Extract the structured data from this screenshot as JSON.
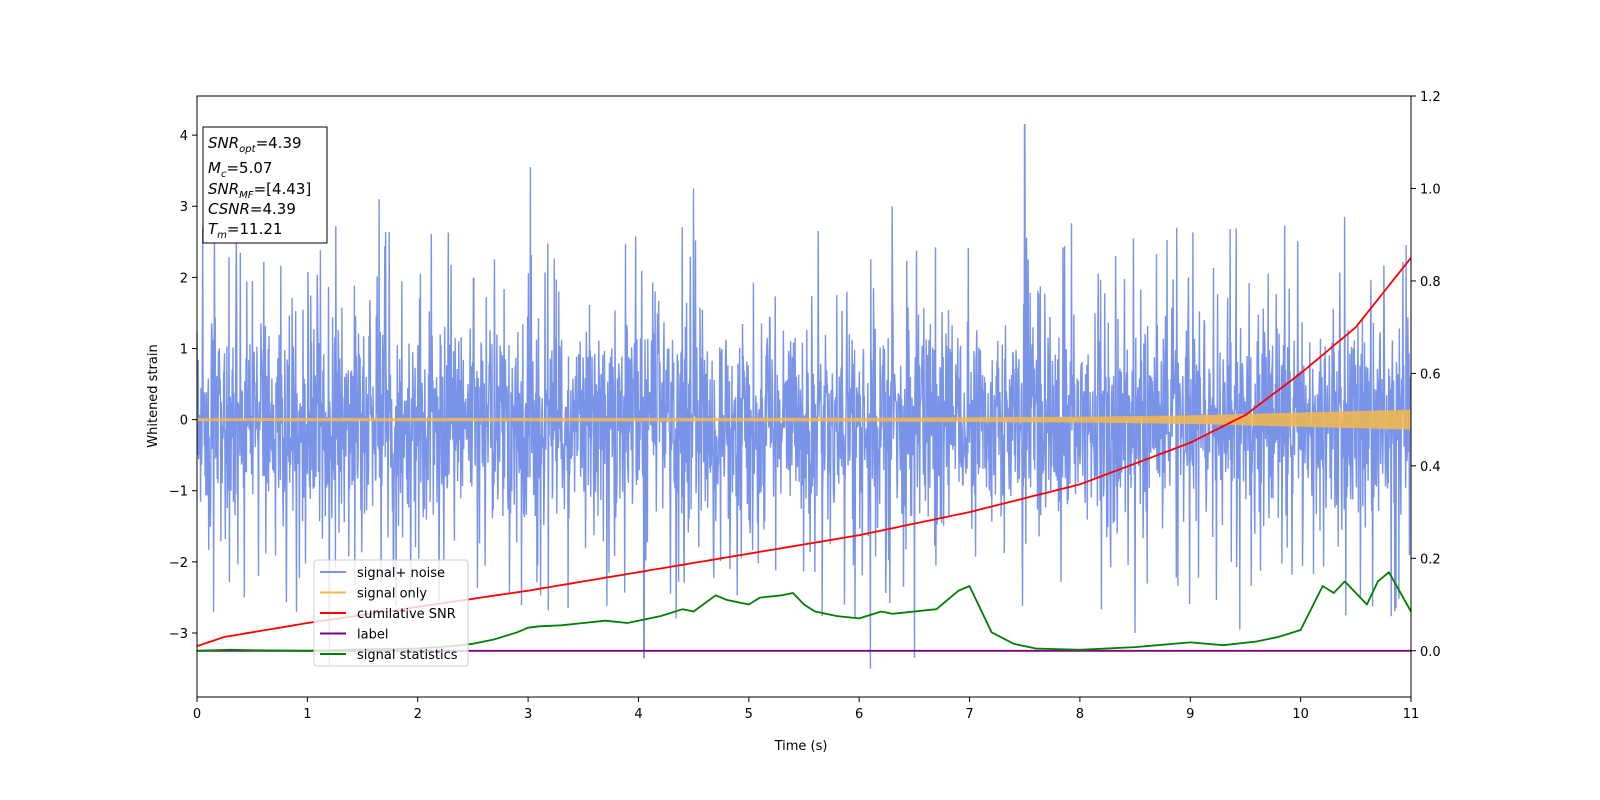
{
  "chart_data": {
    "type": "line",
    "xlabel": "Time (s)",
    "ylabel": "Whitened strain",
    "xlim": [
      0,
      11
    ],
    "ylim_left": [
      -3.9,
      4.55
    ],
    "ylim_right": [
      -0.1,
      1.2
    ],
    "xticks": [
      0,
      1,
      2,
      3,
      4,
      5,
      6,
      7,
      8,
      9,
      10,
      11
    ],
    "yticks_left": [
      -3,
      -2,
      -1,
      0,
      1,
      2,
      3,
      4
    ],
    "yticks_right": [
      0.0,
      0.2,
      0.4,
      0.6,
      0.8,
      1.0,
      1.2
    ],
    "legend_position": "lower-left",
    "annotation_box": [
      {
        "base": "SNR",
        "sub": "opt",
        "value": "=4.39"
      },
      {
        "base": "M",
        "sub": "c",
        "value": "=5.07"
      },
      {
        "base": "SNR",
        "sub": "MF",
        "value": "=[4.43]"
      },
      {
        "base": "CSNR",
        "sub": "",
        "value": "=4.39"
      },
      {
        "base": "T",
        "sub": "m",
        "value": "=11.21"
      }
    ],
    "series": [
      {
        "name": "signal+ noise",
        "axis": "left",
        "color": "#7893e8",
        "kind": "noise",
        "typical_range": [
          -1.9,
          1.9
        ],
        "peak_spikes": [
          [
            0.05,
            2.7
          ],
          [
            0.15,
            -2.7
          ],
          [
            0.43,
            -2.5
          ],
          [
            1.2,
            -3.45
          ],
          [
            1.65,
            3.1
          ],
          [
            3.02,
            3.55
          ],
          [
            4.05,
            -3.35
          ],
          [
            4.5,
            3.25
          ],
          [
            6.1,
            -3.5
          ],
          [
            6.3,
            3.0
          ],
          [
            6.5,
            -3.35
          ],
          [
            7.5,
            4.15
          ],
          [
            8.5,
            -3.0
          ],
          [
            9.45,
            -2.95
          ],
          [
            10.4,
            2.85
          ]
        ]
      },
      {
        "name": "signal only",
        "axis": "left",
        "color": "#f5b84a",
        "kind": "chirp",
        "amplitude": [
          [
            0,
            0.02
          ],
          [
            6,
            0.025
          ],
          [
            8,
            0.04
          ],
          [
            9,
            0.06
          ],
          [
            10,
            0.1
          ],
          [
            11,
            0.14
          ]
        ]
      },
      {
        "name": "cumilative SNR",
        "axis": "right",
        "color": "#ff0000",
        "x": [
          0,
          0.25,
          0.5,
          1,
          2,
          3,
          4,
          5,
          6,
          7,
          8,
          9,
          9.5,
          10,
          10.5,
          11
        ],
        "y": [
          0.01,
          0.03,
          0.04,
          0.06,
          0.095,
          0.13,
          0.17,
          0.21,
          0.25,
          0.3,
          0.36,
          0.45,
          0.51,
          0.6,
          0.7,
          0.85
        ]
      },
      {
        "name": "label",
        "axis": "right",
        "color": "#800080",
        "x": [
          0,
          11
        ],
        "y": [
          0.0,
          0.0
        ]
      },
      {
        "name": "signal statistics",
        "axis": "right",
        "color": "#008000",
        "x": [
          0,
          0.3,
          0.5,
          1,
          1.5,
          2,
          2.3,
          2.5,
          2.7,
          2.9,
          3.0,
          3.1,
          3.3,
          3.5,
          3.7,
          3.9,
          4.2,
          4.4,
          4.5,
          4.7,
          4.8,
          5.0,
          5.1,
          5.3,
          5.4,
          5.5,
          5.6,
          5.8,
          6.0,
          6.2,
          6.3,
          6.5,
          6.7,
          6.9,
          7.0,
          7.2,
          7.4,
          7.6,
          8.0,
          8.5,
          9.0,
          9.3,
          9.6,
          9.8,
          10.0,
          10.2,
          10.3,
          10.4,
          10.6,
          10.7,
          10.8,
          11.0
        ],
        "y": [
          0.0,
          0.002,
          0.001,
          0.0,
          0.003,
          0.005,
          0.01,
          0.015,
          0.025,
          0.04,
          0.05,
          0.053,
          0.055,
          0.06,
          0.065,
          0.06,
          0.075,
          0.09,
          0.085,
          0.12,
          0.11,
          0.1,
          0.115,
          0.12,
          0.125,
          0.1,
          0.085,
          0.075,
          0.07,
          0.085,
          0.08,
          0.085,
          0.09,
          0.13,
          0.14,
          0.04,
          0.015,
          0.005,
          0.002,
          0.008,
          0.018,
          0.012,
          0.02,
          0.03,
          0.045,
          0.14,
          0.125,
          0.15,
          0.1,
          0.15,
          0.17,
          0.085
        ]
      }
    ]
  }
}
